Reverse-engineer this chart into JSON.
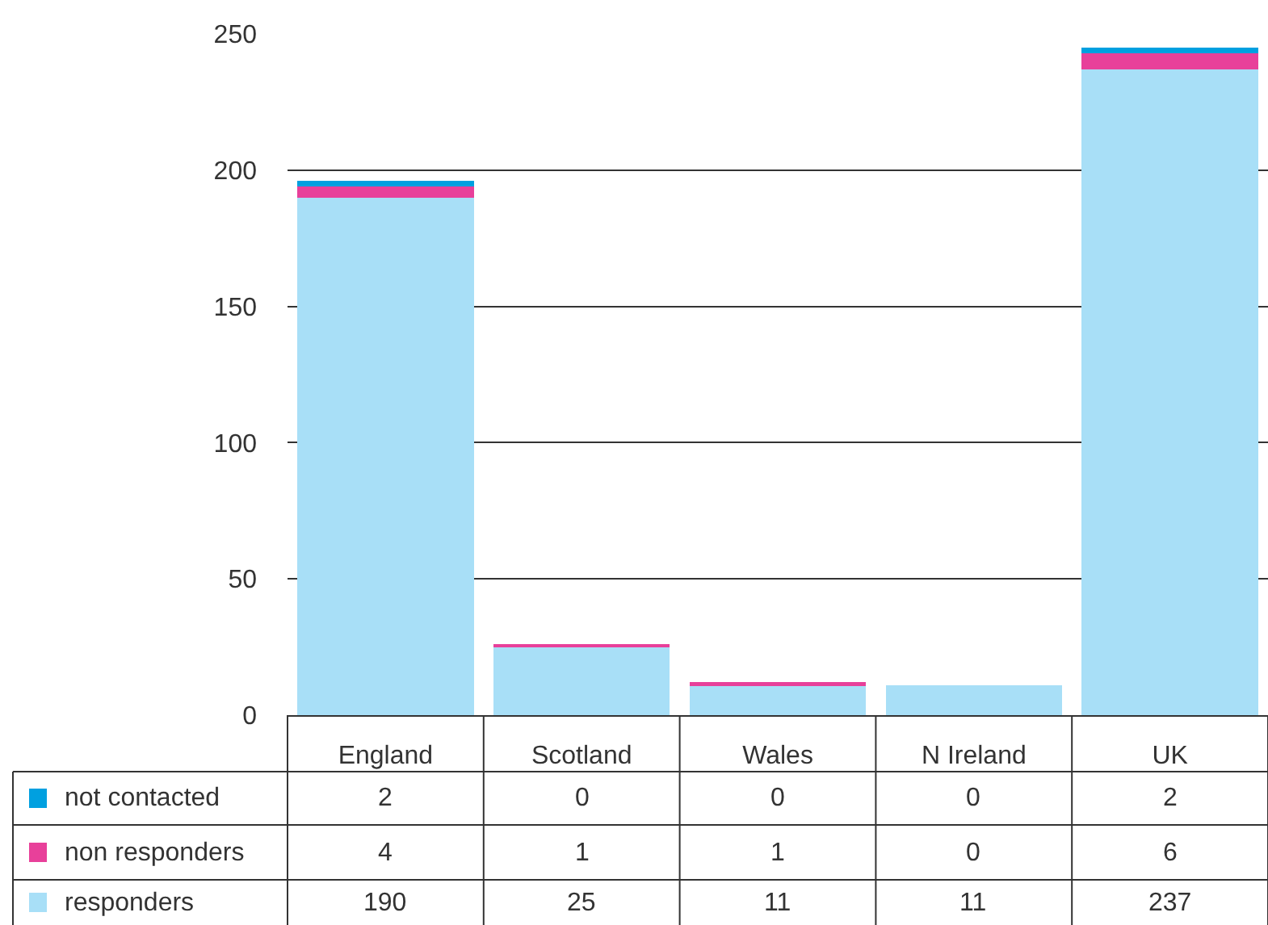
{
  "chart_data": {
    "type": "bar",
    "stacked": true,
    "data_labels": true,
    "grid": "y",
    "legend": "bottom",
    "categories": [
      "England",
      "Scotland",
      "Wales",
      "N Ireland",
      "UK"
    ],
    "ylim": [
      0,
      250
    ],
    "yticks": [
      0,
      50,
      100,
      150,
      200,
      250
    ],
    "series": [
      {
        "name": "responders",
        "color": "#a8dff7",
        "values": [
          190,
          25,
          11,
          11,
          237
        ]
      },
      {
        "name": "non responders",
        "color": "#e8409a",
        "values": [
          4,
          1,
          1,
          0,
          6
        ]
      },
      {
        "name": "not contacted",
        "color": "#00a0e0",
        "values": [
          2,
          0,
          0,
          0,
          2
        ]
      }
    ]
  }
}
